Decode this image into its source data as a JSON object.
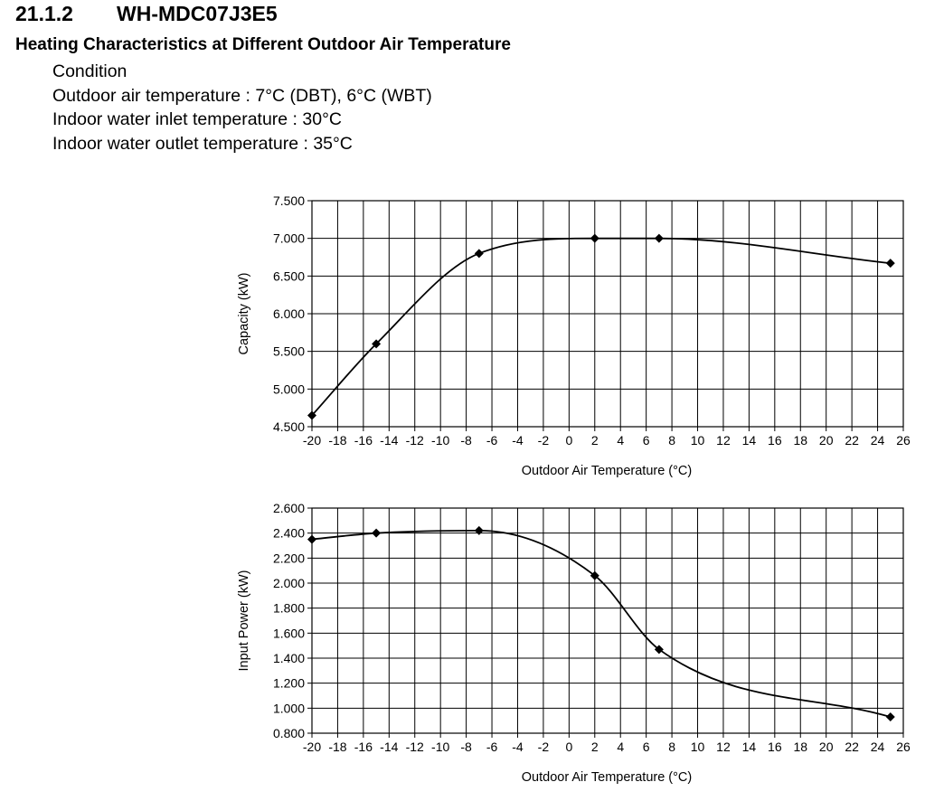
{
  "section": {
    "number": "21.1.2",
    "model": "WH-MDC07J3E5"
  },
  "subtitle": "Heating Characteristics at Different Outdoor Air Temperature",
  "conditions": {
    "heading": "Condition",
    "lines": [
      "Outdoor air temperature : 7°C (DBT), 6°C (WBT)",
      "Indoor water inlet temperature : 30°C",
      "Indoor water outlet temperature : 35°C"
    ]
  },
  "chart_data": [
    {
      "type": "line",
      "title": "",
      "xlabel": "Outdoor Air Temperature (°C)",
      "ylabel": "Capacity (kW)",
      "xlim": [
        -20,
        26
      ],
      "ylim": [
        4.5,
        7.5
      ],
      "x_ticks": [
        -20,
        -18,
        -16,
        -14,
        -12,
        -10,
        -8,
        -6,
        -4,
        -2,
        0,
        2,
        4,
        6,
        8,
        10,
        12,
        14,
        16,
        18,
        20,
        22,
        24,
        26
      ],
      "x_tick_labels": [
        "-20",
        "-18",
        "-16",
        "-14",
        "-12",
        "-10",
        "-8",
        "-6",
        "-4",
        "-2",
        "0",
        "2",
        "4",
        "6",
        "8",
        "10",
        "12",
        "14",
        "16",
        "18",
        "20",
        "22",
        "24",
        "26"
      ],
      "y_ticks": [
        4.5,
        5.0,
        5.5,
        6.0,
        6.5,
        7.0,
        7.5
      ],
      "y_tick_labels": [
        "4.500",
        "5.000",
        "5.500",
        "6.000",
        "6.500",
        "7.000",
        "7.500"
      ],
      "grid": true,
      "series": [
        {
          "name": "Capacity",
          "color": "#000000",
          "marker": "diamond",
          "x": [
            -20,
            -15,
            -7,
            2,
            7,
            25
          ],
          "y": [
            4.65,
            5.6,
            6.8,
            7.0,
            7.0,
            6.67
          ]
        }
      ]
    },
    {
      "type": "line",
      "title": "",
      "xlabel": "Outdoor Air Temperature (°C)",
      "ylabel": "Input Power (kW)",
      "xlim": [
        -20,
        26
      ],
      "ylim": [
        0.8,
        2.6
      ],
      "x_ticks": [
        -20,
        -18,
        -16,
        -14,
        -12,
        -10,
        -8,
        -6,
        -4,
        -2,
        0,
        2,
        4,
        6,
        8,
        10,
        12,
        14,
        16,
        18,
        20,
        22,
        24,
        26
      ],
      "x_tick_labels": [
        "-20",
        "-18",
        "-16",
        "-14",
        "-12",
        "-10",
        "-8",
        "-6",
        "-4",
        "-2",
        "0",
        "2",
        "4",
        "6",
        "8",
        "10",
        "12",
        "14",
        "16",
        "18",
        "20",
        "22",
        "24",
        "26"
      ],
      "y_ticks": [
        0.8,
        1.0,
        1.2,
        1.4,
        1.6,
        1.8,
        2.0,
        2.2,
        2.4,
        2.6
      ],
      "y_tick_labels": [
        "0.800",
        "1.000",
        "1.200",
        "1.400",
        "1.600",
        "1.800",
        "2.000",
        "2.200",
        "2.400",
        "2.600"
      ],
      "grid": true,
      "series": [
        {
          "name": "Input Power",
          "color": "#000000",
          "marker": "diamond",
          "x": [
            -20,
            -15,
            -7,
            2,
            7,
            25
          ],
          "y": [
            2.35,
            2.4,
            2.42,
            2.06,
            1.47,
            0.93
          ]
        }
      ]
    }
  ]
}
